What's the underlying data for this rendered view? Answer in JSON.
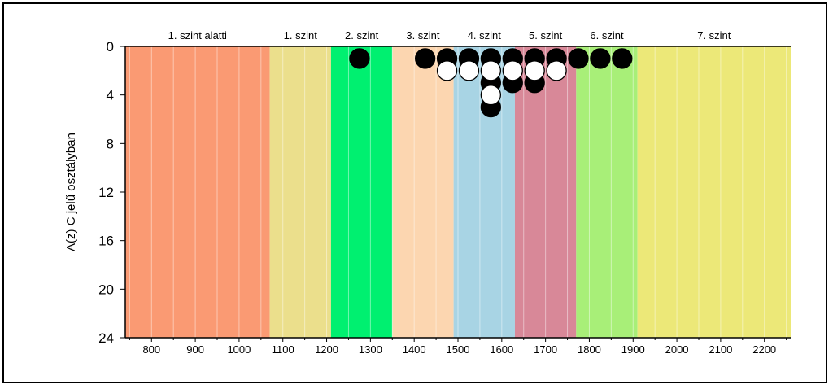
{
  "chart_data": {
    "type": "scatter",
    "title": "",
    "xlabel": "",
    "ylabel": "A(z) C jelű osztályban",
    "xlim": [
      740,
      2260
    ],
    "ylim": [
      0,
      24
    ],
    "y_inverted": true,
    "xticks": [
      800,
      900,
      1000,
      1100,
      1200,
      1300,
      1400,
      1500,
      1600,
      1700,
      1800,
      1900,
      2000,
      2100,
      2200
    ],
    "yticks": [
      0,
      4,
      8,
      12,
      16,
      20,
      24
    ],
    "bands": [
      {
        "label": "1. szint alatti",
        "from": 740,
        "to": 1070,
        "color": "#fa9a73"
      },
      {
        "label": "1. szint",
        "from": 1070,
        "to": 1210,
        "color": "#ebdf8c"
      },
      {
        "label": "2. szint",
        "from": 1210,
        "to": 1350,
        "color": "#00f070"
      },
      {
        "label": "3. szint",
        "from": 1350,
        "to": 1490,
        "color": "#fcd6b0"
      },
      {
        "label": "4. szint",
        "from": 1490,
        "to": 1630,
        "color": "#a8d4e4"
      },
      {
        "label": "5. szint",
        "from": 1630,
        "to": 1770,
        "color": "#d88898"
      },
      {
        "label": "6. szint",
        "from": 1770,
        "to": 1910,
        "color": "#a8ef78"
      },
      {
        "label": "7. szint",
        "from": 1910,
        "to": 2260,
        "color": "#ece878"
      }
    ],
    "series": [
      {
        "marker": "filled-black",
        "color": "#000000",
        "points": [
          {
            "x": 1275,
            "y": 1
          },
          {
            "x": 1425,
            "y": 1
          },
          {
            "x": 1475,
            "y": 1
          },
          {
            "x": 1525,
            "y": 1
          },
          {
            "x": 1575,
            "y": 1
          },
          {
            "x": 1625,
            "y": 1
          },
          {
            "x": 1675,
            "y": 1
          },
          {
            "x": 1725,
            "y": 1
          },
          {
            "x": 1775,
            "y": 1
          },
          {
            "x": 1825,
            "y": 1
          },
          {
            "x": 1875,
            "y": 1
          },
          {
            "x": 1575,
            "y": 3
          },
          {
            "x": 1625,
            "y": 3
          },
          {
            "x": 1675,
            "y": 3
          },
          {
            "x": 1575,
            "y": 5
          }
        ]
      },
      {
        "marker": "open-white",
        "color": "#ffffff",
        "points": [
          {
            "x": 1475,
            "y": 2
          },
          {
            "x": 1525,
            "y": 2
          },
          {
            "x": 1575,
            "y": 2
          },
          {
            "x": 1625,
            "y": 2
          },
          {
            "x": 1675,
            "y": 2
          },
          {
            "x": 1725,
            "y": 2
          },
          {
            "x": 1575,
            "y": 4
          }
        ]
      }
    ],
    "grid": {
      "vertical_every": 50,
      "horizontal": false
    }
  }
}
